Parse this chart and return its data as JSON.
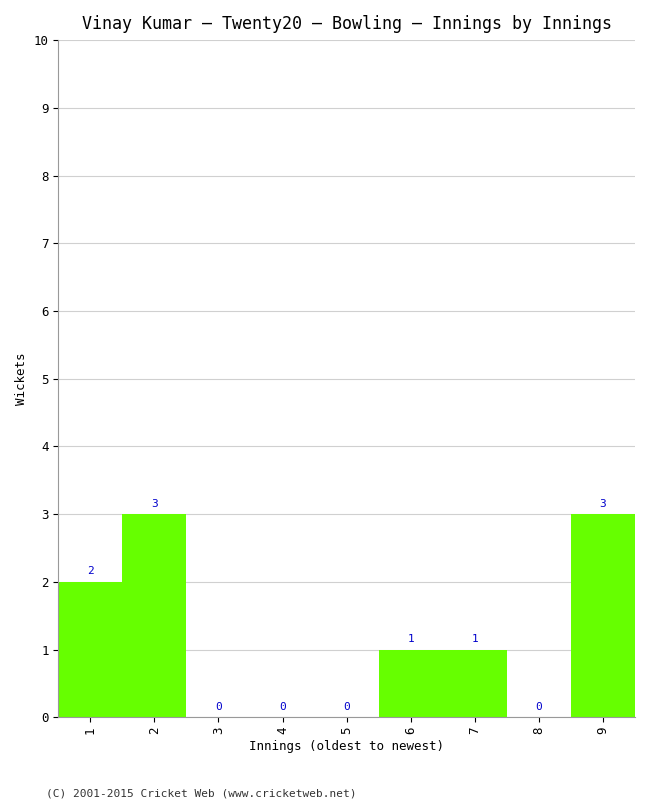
{
  "title": "Vinay Kumar – Twenty20 – Bowling – Innings by Innings",
  "xlabel": "Innings (oldest to newest)",
  "ylabel": "Wickets",
  "categories": [
    "1",
    "2",
    "3",
    "4",
    "5",
    "6",
    "7",
    "8",
    "9"
  ],
  "values": [
    2,
    3,
    0,
    0,
    0,
    1,
    1,
    0,
    3
  ],
  "bar_color": "#66ff00",
  "bar_edge_color": "#66ff00",
  "label_color": "#0000cc",
  "ylim": [
    0,
    10
  ],
  "yticks": [
    0,
    1,
    2,
    3,
    4,
    5,
    6,
    7,
    8,
    9,
    10
  ],
  "background_color": "#ffffff",
  "grid_color": "#d0d0d0",
  "title_fontsize": 12,
  "axis_label_fontsize": 9,
  "tick_fontsize": 9,
  "bar_label_fontsize": 8,
  "footer_text": "(C) 2001-2015 Cricket Web (www.cricketweb.net)"
}
